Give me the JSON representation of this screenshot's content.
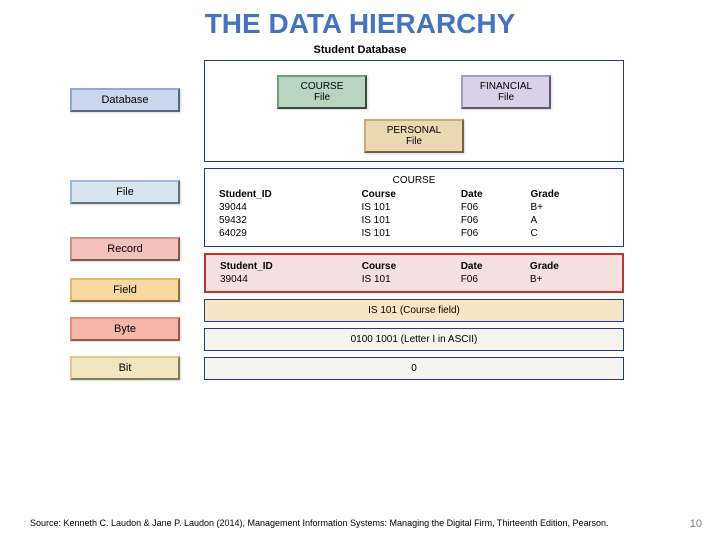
{
  "title": {
    "text": "THE DATA HIERARCHY",
    "color": "#4472c4",
    "fontsize": 28
  },
  "subtitle": "Student Database",
  "colors": {
    "title": "#4472c4",
    "panel_border": "#1f3a93",
    "left_database": {
      "bg": "#c9d6eb",
      "border": "#8fa8d4"
    },
    "left_file": {
      "bg": "#d9e4f1",
      "border": "#9fb6d9"
    },
    "left_record": {
      "bg": "#f2c1bb",
      "border": "#d38f85"
    },
    "left_field": {
      "bg": "#f7d8a1",
      "border": "#e0b86e"
    },
    "left_byte": {
      "bg": "#f5b6a8",
      "border": "#e08e7a"
    },
    "left_bit": {
      "bg": "#f0e6bd",
      "border": "#d8cb8f"
    },
    "course_file": {
      "bg": "#b9d4c1",
      "border": "#6fa07d"
    },
    "financial_file": {
      "bg": "#d9d1e8",
      "border": "#a497c7"
    },
    "personal_file": {
      "bg": "#ead9b3",
      "border": "#c7ad73"
    },
    "file_panel_bg": "#ffffff",
    "record_panel_bg": "#f4e0de",
    "record_panel_border": "#c23329",
    "field_panel_bg": "#f7e6c3",
    "byte_panel_bg": "#f6f4ef",
    "bit_panel_bg": "#f6f4ef"
  },
  "left_labels": {
    "database": "Database",
    "file": "File",
    "record": "Record",
    "field": "Field",
    "byte": "Byte",
    "bit": "Bit"
  },
  "database_panel": {
    "course_file": "COURSE\nFile",
    "financial_file": "FINANCIAL\nFile",
    "personal_file": "PERSONAL\nFile"
  },
  "file_panel": {
    "title": "COURSE",
    "columns": [
      "Student_ID",
      "Course",
      "Date",
      "Grade"
    ],
    "rows": [
      [
        "39044",
        "IS 101",
        "F06",
        "B+"
      ],
      [
        "59432",
        "IS 101",
        "F06",
        "A"
      ],
      [
        "64029",
        "IS 101",
        "F06",
        "C"
      ]
    ]
  },
  "record_panel": {
    "columns": [
      "Student_ID",
      "Course",
      "Date",
      "Grade"
    ],
    "row": [
      "39044",
      "IS 101",
      "F06",
      "B+"
    ]
  },
  "field_panel": {
    "text": "IS 101    (Course field)"
  },
  "byte_panel": {
    "text": "0100 1001  (Letter I in ASCII)"
  },
  "bit_panel": {
    "text": "0"
  },
  "source": "Source: Kenneth C. Laudon & Jane P. Laudon (2014), Management Information Systems: Managing the Digital Firm, Thirteenth Edition, Pearson.",
  "page_number": "10",
  "left_offsets": {
    "database": 28,
    "file": 68,
    "record": 33,
    "field": 17,
    "byte": 15,
    "bit": 15
  }
}
